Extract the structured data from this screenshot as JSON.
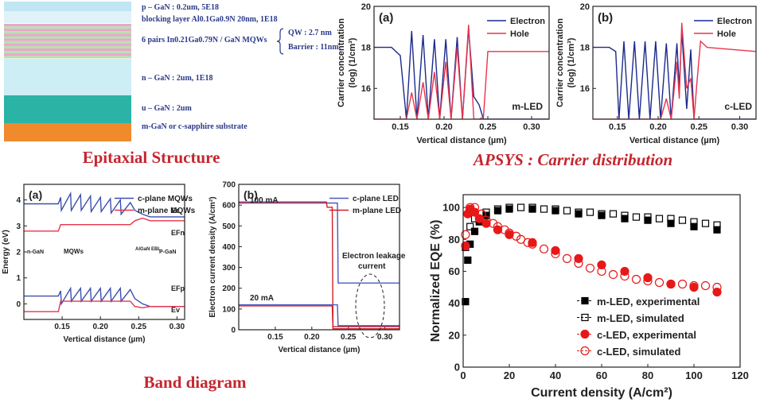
{
  "epitaxial": {
    "layers": [
      "p – GaN : 0.2um, 5E18",
      "blocking layer Al0.1Ga0.9N 20nm, 1E18",
      "6 pairs In0.21Ga0.79N / GaN MQWs",
      "n – GaN : 2um, 1E18",
      "u – GaN : 2um",
      "m-GaN or c-sapphire substrate"
    ],
    "mqw_details": [
      "QW : 2.7 nm",
      "Barrier : 11nm"
    ]
  },
  "captions": [
    "Epitaxial Structure",
    "APSYS : Carrier distribution",
    "Band diagram"
  ],
  "chart_data": [
    {
      "type": "line",
      "panel": "(a)",
      "annotations": [
        "m-LED"
      ],
      "xlabel": "Vertical distance (µm)",
      "ylabel": [
        "Carrier concentration",
        "(log) (1/cm³)"
      ],
      "x": [
        0.12,
        0.14,
        0.15,
        0.157,
        0.163,
        0.169,
        0.176,
        0.182,
        0.189,
        0.195,
        0.202,
        0.208,
        0.215,
        0.221,
        0.228,
        0.234,
        0.24,
        0.245,
        0.25,
        0.32
      ],
      "series": [
        {
          "name": "Electron",
          "color": "#1c2a8c",
          "values": [
            18,
            18,
            17.6,
            14.5,
            18.8,
            14.5,
            18.6,
            14.5,
            18.4,
            14.5,
            18.4,
            14.5,
            18.5,
            14.5,
            18.9,
            15.6,
            15.2,
            14.5,
            14.5,
            14.5
          ]
        },
        {
          "name": "Hole",
          "color": "#e8344a",
          "values": [
            14.5,
            14.5,
            14.5,
            14.5,
            15.8,
            14.5,
            16.3,
            14.5,
            16.8,
            14.5,
            17.3,
            14.5,
            18,
            14.5,
            19.1,
            14.5,
            14.5,
            14.6,
            17.8,
            17.8
          ]
        }
      ],
      "xlim": [
        0.12,
        0.32
      ],
      "ylim": [
        14.5,
        20
      ],
      "xticks": [
        0.15,
        {
          "value": 0.2,
          "label": "0.20"
        },
        0.25,
        {
          "value": 0.3,
          "label": "0.30"
        }
      ],
      "yticks": [
        16,
        18,
        20
      ],
      "legend": "upper right"
    },
    {
      "type": "line",
      "panel": "(b)",
      "annotations": [
        "c-LED"
      ],
      "xlabel": "Vertical distance (µm)",
      "ylabel": [
        "Carrier concentration",
        "(log) (1/cm³)"
      ],
      "x": [
        0.12,
        0.14,
        0.148,
        0.152,
        0.158,
        0.164,
        0.171,
        0.177,
        0.184,
        0.19,
        0.197,
        0.203,
        0.21,
        0.216,
        0.223,
        0.226,
        0.229,
        0.235,
        0.24,
        0.244,
        0.248,
        0.252,
        0.26,
        0.32
      ],
      "series": [
        {
          "name": "Electron",
          "color": "#1c2a8c",
          "values": [
            18,
            18,
            17.8,
            14.5,
            18.3,
            14.5,
            18.3,
            14.5,
            18.3,
            14.5,
            18.3,
            14.5,
            18.2,
            14.5,
            18.2,
            16,
            18.8,
            15,
            17.9,
            14.5,
            14.5,
            14.5,
            14.5,
            14.5
          ]
        },
        {
          "name": "Hole",
          "color": "#e8344a",
          "values": [
            14.5,
            14.5,
            14.5,
            14.5,
            14.5,
            14.5,
            14.5,
            14.5,
            14.5,
            14.5,
            14.5,
            14.5,
            15.5,
            14.5,
            17.3,
            15.5,
            19.2,
            16,
            16.5,
            14.5,
            16.5,
            18.3,
            18,
            17.8
          ]
        }
      ],
      "xlim": [
        0.12,
        0.32
      ],
      "ylim": [
        14.5,
        20
      ],
      "xticks": [
        0.15,
        {
          "value": 0.2,
          "label": "0.20"
        },
        0.25,
        {
          "value": 0.3,
          "label": "0.30"
        }
      ],
      "yticks": [
        16,
        18,
        20
      ],
      "legend": "upper right"
    },
    {
      "type": "line",
      "panel": "(a)",
      "annotations": [
        "Ec",
        "EFn",
        "EFp",
        "Ev",
        "n-GaN",
        "MQWs",
        "AlGaN EBL",
        "P-GaN"
      ],
      "xlabel": "Vertical distance (µm)",
      "ylabel": [
        "Energy (eV)"
      ],
      "x": [
        0.1,
        0.145,
        0.148,
        0.149,
        0.161,
        0.162,
        0.174,
        0.175,
        0.187,
        0.188,
        0.2,
        0.201,
        0.213,
        0.214,
        0.226,
        0.227,
        0.239,
        0.245,
        0.255,
        0.265,
        0.31
      ],
      "series": [
        {
          "name": "c-plane MQWs",
          "color": "#3a4fb0",
          "values": [
            3.85,
            3.85,
            4.1,
            3.6,
            4.25,
            3.6,
            4.2,
            3.6,
            4.15,
            3.55,
            4.1,
            3.55,
            4.05,
            3.5,
            4.0,
            3.45,
            3.9,
            3.6,
            3.45,
            3.35,
            3.35
          ]
        },
        {
          "name": "m-plane MQWs",
          "color": "#e8344a",
          "values": [
            2.8,
            2.8,
            3.05,
            3.05,
            3.05,
            3.05,
            3.05,
            3.05,
            3.05,
            3.05,
            3.05,
            3.05,
            3.05,
            3.05,
            3.05,
            3.05,
            3.05,
            3.2,
            3.3,
            3.2,
            3.2
          ]
        },
        {
          "color": "#3a4fb0",
          "values": [
            0.3,
            0.3,
            0.5,
            0.0,
            0.6,
            0.1,
            0.6,
            0.1,
            0.6,
            0.1,
            0.6,
            0.1,
            0.6,
            0.1,
            0.6,
            0.1,
            0.55,
            0.2,
            0.0,
            -0.1,
            -0.1
          ]
        },
        {
          "color": "#e8344a",
          "values": [
            -0.3,
            -0.3,
            0.1,
            0.1,
            0.1,
            0.1,
            0.1,
            0.1,
            0.1,
            0.1,
            0.1,
            0.1,
            0.1,
            0.1,
            0.1,
            0.1,
            0.1,
            -0.1,
            -0.15,
            -0.1,
            -0.1
          ]
        }
      ],
      "xlim": [
        0.1,
        0.31
      ],
      "ylim": [
        -0.6,
        4.6
      ],
      "xticks": [
        0.15,
        {
          "value": 0.2,
          "label": "0.20"
        },
        0.25,
        {
          "value": 0.3,
          "label": "0.30"
        }
      ],
      "yticks": [
        0,
        1,
        2,
        3,
        4
      ],
      "legend": "upper right"
    },
    {
      "type": "line",
      "panel": "(b)",
      "annotations": [
        "100 mA",
        "20 mA",
        "Electron leakage",
        "current"
      ],
      "xlabel": "Vertical distance (µm)",
      "ylabel": [
        "Electron current density (A/cm²)"
      ],
      "x": [
        0.1,
        0.22,
        0.221,
        0.228,
        0.229,
        0.235,
        0.236,
        0.32
      ],
      "series": [
        {
          "name": "c-plane LED",
          "color": "#4a5bc0",
          "values": [
            610,
            610,
            610,
            610,
            610,
            610,
            225,
            225
          ]
        },
        {
          "name": "m-plane LED",
          "color": "#d0202a",
          "values": [
            615,
            615,
            590,
            590,
            15,
            15,
            15,
            15
          ]
        },
        {
          "color": "#4a5bc0",
          "values": [
            120,
            120,
            120,
            120,
            120,
            120,
            20,
            20
          ]
        },
        {
          "color": "#d0202a",
          "values": [
            115,
            115,
            115,
            115,
            5,
            5,
            5,
            5
          ]
        }
      ],
      "xlim": [
        0.1,
        0.32
      ],
      "ylim": [
        0,
        700
      ],
      "xticks": [
        0.15,
        {
          "value": 0.2,
          "label": "0.20"
        },
        0.25,
        {
          "value": 0.3,
          "label": "0.30"
        }
      ],
      "yticks": [
        0,
        100,
        200,
        300,
        400,
        500,
        600,
        700
      ],
      "legend": "upper right"
    },
    {
      "type": "scatter",
      "xlabel": "Current density (A/cm²)",
      "ylabel": [
        "Normalized EQE (%)"
      ],
      "series": [
        {
          "name": "m-LED, experimental",
          "color": "#000000",
          "marker": "square",
          "filled": true,
          "x": [
            1,
            2,
            3,
            5,
            7,
            10,
            15,
            20,
            30,
            40,
            50,
            60,
            70,
            80,
            90,
            100,
            110
          ],
          "values": [
            41,
            67,
            77,
            85,
            91,
            95,
            98,
            99,
            99,
            98,
            96,
            95,
            93,
            92,
            90,
            88,
            86
          ]
        },
        {
          "name": "m-LED, simulated",
          "color": "#000000",
          "marker": "square",
          "filled": false,
          "x": [
            1,
            3,
            5,
            10,
            15,
            20,
            25,
            30,
            35,
            40,
            45,
            50,
            55,
            60,
            65,
            70,
            75,
            80,
            85,
            90,
            95,
            100,
            105,
            110
          ],
          "values": [
            75,
            88,
            93,
            97,
            99,
            100,
            100,
            100,
            99,
            99,
            98,
            97,
            97,
            96,
            96,
            95,
            94,
            94,
            93,
            93,
            92,
            91,
            90,
            89
          ]
        },
        {
          "name": "c-LED, experimental",
          "color": "#e81818",
          "marker": "circle",
          "filled": true,
          "x": [
            1,
            2,
            3,
            5,
            7,
            10,
            15,
            20,
            30,
            40,
            50,
            60,
            70,
            80,
            90,
            100,
            110
          ],
          "values": [
            76,
            96,
            99,
            97,
            93,
            90,
            86,
            83,
            78,
            73,
            68,
            64,
            60,
            56,
            52,
            50,
            47
          ]
        },
        {
          "name": "c-LED, simulated",
          "color": "#e81818",
          "marker": "circle",
          "filled": false,
          "x": [
            1,
            3,
            5,
            8,
            10,
            13,
            15,
            18,
            20,
            23,
            25,
            28,
            30,
            35,
            40,
            45,
            50,
            55,
            60,
            65,
            70,
            75,
            80,
            85,
            90,
            95,
            100,
            105,
            110
          ],
          "values": [
            83,
            100,
            100,
            96,
            92,
            90,
            88,
            86,
            84,
            82,
            80,
            78,
            77,
            74,
            71,
            68,
            65,
            62,
            60,
            58,
            57,
            55,
            54,
            53,
            52,
            52,
            51,
            51,
            50
          ]
        }
      ],
      "xlim": [
        0,
        120
      ],
      "ylim": [
        0,
        108
      ],
      "xticks": [
        0,
        20,
        40,
        60,
        80,
        100,
        120
      ],
      "yticks": [
        0,
        20,
        40,
        60,
        80,
        100
      ],
      "legend": "lower right"
    }
  ]
}
